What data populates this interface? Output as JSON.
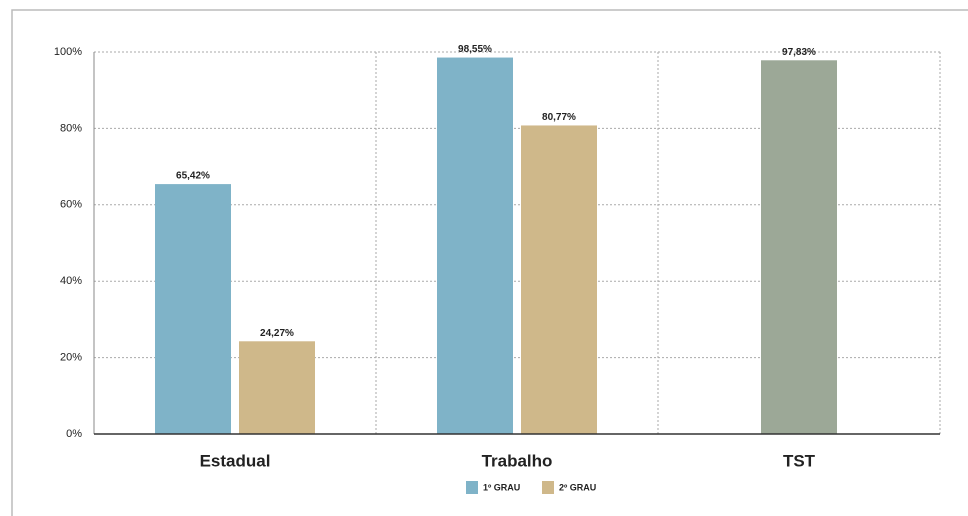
{
  "chart_data": {
    "type": "bar",
    "categories": [
      "Estadual",
      "Trabalho",
      "TST"
    ],
    "series": [
      {
        "name": "1º GRAU",
        "color": "#7fb3c8",
        "colors": [
          "#7fb3c8",
          "#7fb3c8",
          "#9ca897"
        ],
        "values": [
          65.42,
          98.55,
          97.83
        ],
        "value_labels": [
          "65,42%",
          "98,55%",
          "97,83%"
        ]
      },
      {
        "name": "2º GRAU",
        "color": "#cfb88a",
        "values": [
          24.27,
          80.77,
          null
        ],
        "value_labels": [
          "24,27%",
          "80,77%",
          null
        ]
      }
    ],
    "ylim": [
      0,
      100
    ],
    "yticks": [
      {
        "value": 0,
        "label": "0%"
      },
      {
        "value": 20,
        "label": "20%"
      },
      {
        "value": 40,
        "label": "40%"
      },
      {
        "value": 60,
        "label": "60%"
      },
      {
        "value": 80,
        "label": "80%"
      },
      {
        "value": 100,
        "label": "100%"
      }
    ],
    "grid": true,
    "legend": "bottom"
  }
}
